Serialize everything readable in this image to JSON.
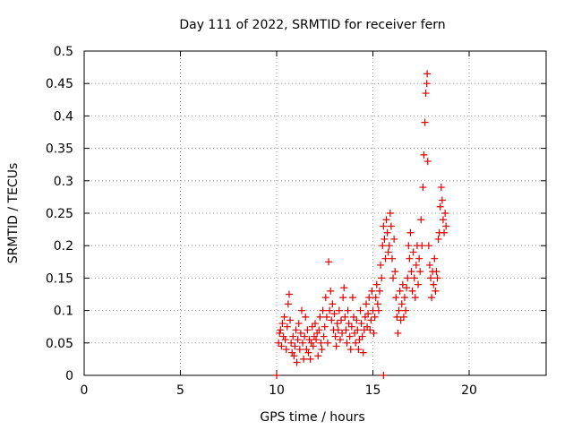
{
  "chart_data": {
    "type": "scatter",
    "title": "Day 111 of 2022, SRMTID for receiver fern",
    "xlabel": "GPS time / hours",
    "ylabel": "SRMTID / TECUs",
    "xlim": [
      0,
      24
    ],
    "ylim": [
      0,
      0.5
    ],
    "x_ticks": [
      0,
      5,
      10,
      15,
      20
    ],
    "y_ticks": [
      0,
      0.05,
      0.1,
      0.15,
      0.2,
      0.25,
      0.3,
      0.35,
      0.4,
      0.45,
      0.5
    ],
    "grid": true,
    "marker": "+",
    "color": "#e00000",
    "series": [
      {
        "name": "SRMTID",
        "points": [
          [
            10.0,
            0.0
          ],
          [
            15.55,
            0.0
          ],
          [
            10.1,
            0.05
          ],
          [
            10.15,
            0.065
          ],
          [
            10.2,
            0.07
          ],
          [
            10.25,
            0.045
          ],
          [
            10.3,
            0.08
          ],
          [
            10.35,
            0.06
          ],
          [
            10.4,
            0.09
          ],
          [
            10.45,
            0.055
          ],
          [
            10.5,
            0.04
          ],
          [
            10.55,
            0.075
          ],
          [
            10.6,
            0.11
          ],
          [
            10.65,
            0.125
          ],
          [
            10.7,
            0.085
          ],
          [
            10.75,
            0.05
          ],
          [
            10.8,
            0.035
          ],
          [
            10.85,
            0.06
          ],
          [
            10.9,
            0.03
          ],
          [
            10.95,
            0.045
          ],
          [
            11.0,
            0.07
          ],
          [
            11.05,
            0.02
          ],
          [
            11.1,
            0.055
          ],
          [
            11.15,
            0.08
          ],
          [
            11.2,
            0.04
          ],
          [
            11.25,
            0.065
          ],
          [
            11.3,
            0.1
          ],
          [
            11.35,
            0.05
          ],
          [
            11.4,
            0.025
          ],
          [
            11.45,
            0.06
          ],
          [
            11.5,
            0.09
          ],
          [
            11.55,
            0.04
          ],
          [
            11.6,
            0.07
          ],
          [
            11.65,
            0.035
          ],
          [
            11.7,
            0.055
          ],
          [
            11.75,
            0.025
          ],
          [
            11.8,
            0.05
          ],
          [
            11.85,
            0.075
          ],
          [
            11.9,
            0.045
          ],
          [
            11.95,
            0.06
          ],
          [
            12.0,
            0.08
          ],
          [
            12.05,
            0.055
          ],
          [
            12.1,
            0.065
          ],
          [
            12.15,
            0.03
          ],
          [
            12.2,
            0.07
          ],
          [
            12.25,
            0.09
          ],
          [
            12.3,
            0.05
          ],
          [
            12.35,
            0.04
          ],
          [
            12.4,
            0.1
          ],
          [
            12.45,
            0.06
          ],
          [
            12.5,
            0.075
          ],
          [
            12.55,
            0.12
          ],
          [
            12.6,
            0.09
          ],
          [
            12.65,
            0.05
          ],
          [
            12.7,
            0.175
          ],
          [
            12.75,
            0.1
          ],
          [
            12.8,
            0.13
          ],
          [
            12.85,
            0.085
          ],
          [
            12.9,
            0.11
          ],
          [
            12.95,
            0.07
          ],
          [
            13.0,
            0.095
          ],
          [
            13.05,
            0.06
          ],
          [
            13.1,
            0.045
          ],
          [
            13.15,
            0.08
          ],
          [
            13.2,
            0.07
          ],
          [
            13.25,
            0.1
          ],
          [
            13.3,
            0.055
          ],
          [
            13.35,
            0.085
          ],
          [
            13.4,
            0.065
          ],
          [
            13.45,
            0.12
          ],
          [
            13.5,
            0.135
          ],
          [
            13.55,
            0.09
          ],
          [
            13.6,
            0.07
          ],
          [
            13.65,
            0.05
          ],
          [
            13.7,
            0.1
          ],
          [
            13.75,
            0.08
          ],
          [
            13.8,
            0.06
          ],
          [
            13.85,
            0.04
          ],
          [
            13.9,
            0.075
          ],
          [
            13.95,
            0.12
          ],
          [
            14.0,
            0.09
          ],
          [
            14.05,
            0.065
          ],
          [
            14.1,
            0.05
          ],
          [
            14.15,
            0.085
          ],
          [
            14.2,
            0.07
          ],
          [
            14.25,
            0.04
          ],
          [
            14.3,
            0.055
          ],
          [
            14.35,
            0.1
          ],
          [
            14.4,
            0.08
          ],
          [
            14.45,
            0.06
          ],
          [
            14.5,
            0.035
          ],
          [
            14.55,
            0.07
          ],
          [
            14.6,
            0.09
          ],
          [
            14.65,
            0.11
          ],
          [
            14.7,
            0.075
          ],
          [
            14.75,
            0.095
          ],
          [
            14.8,
            0.12
          ],
          [
            14.85,
            0.07
          ],
          [
            14.9,
            0.085
          ],
          [
            14.95,
            0.13
          ],
          [
            15.0,
            0.1
          ],
          [
            15.05,
            0.065
          ],
          [
            15.1,
            0.09
          ],
          [
            15.15,
            0.12
          ],
          [
            15.2,
            0.14
          ],
          [
            15.25,
            0.11
          ],
          [
            15.3,
            0.1
          ],
          [
            15.35,
            0.13
          ],
          [
            15.4,
            0.17
          ],
          [
            15.45,
            0.15
          ],
          [
            15.5,
            0.2
          ],
          [
            15.55,
            0.23
          ],
          [
            15.6,
            0.21
          ],
          [
            15.65,
            0.18
          ],
          [
            15.7,
            0.24
          ],
          [
            15.75,
            0.22
          ],
          [
            15.8,
            0.19
          ],
          [
            15.85,
            0.2
          ],
          [
            15.9,
            0.25
          ],
          [
            15.95,
            0.23
          ],
          [
            16.0,
            0.18
          ],
          [
            16.05,
            0.15
          ],
          [
            16.1,
            0.21
          ],
          [
            16.15,
            0.16
          ],
          [
            16.2,
            0.12
          ],
          [
            16.25,
            0.09
          ],
          [
            16.3,
            0.065
          ],
          [
            16.35,
            0.1
          ],
          [
            16.4,
            0.13
          ],
          [
            16.45,
            0.085
          ],
          [
            16.5,
            0.11
          ],
          [
            16.55,
            0.14
          ],
          [
            16.6,
            0.09
          ],
          [
            16.65,
            0.12
          ],
          [
            16.7,
            0.1
          ],
          [
            16.75,
            0.135
          ],
          [
            16.8,
            0.15
          ],
          [
            16.85,
            0.2
          ],
          [
            16.9,
            0.18
          ],
          [
            16.95,
            0.22
          ],
          [
            17.0,
            0.16
          ],
          [
            17.05,
            0.13
          ],
          [
            17.1,
            0.19
          ],
          [
            17.15,
            0.15
          ],
          [
            17.2,
            0.12
          ],
          [
            17.25,
            0.17
          ],
          [
            17.3,
            0.2
          ],
          [
            17.35,
            0.14
          ],
          [
            17.4,
            0.18
          ],
          [
            17.45,
            0.16
          ],
          [
            17.5,
            0.24
          ],
          [
            17.55,
            0.2
          ],
          [
            17.6,
            0.29
          ],
          [
            17.65,
            0.34
          ],
          [
            17.7,
            0.39
          ],
          [
            17.75,
            0.435
          ],
          [
            17.8,
            0.45
          ],
          [
            17.82,
            0.465
          ],
          [
            17.85,
            0.33
          ],
          [
            17.9,
            0.2
          ],
          [
            17.95,
            0.17
          ],
          [
            18.0,
            0.15
          ],
          [
            18.05,
            0.12
          ],
          [
            18.1,
            0.16
          ],
          [
            18.15,
            0.14
          ],
          [
            18.2,
            0.18
          ],
          [
            18.25,
            0.13
          ],
          [
            18.3,
            0.16
          ],
          [
            18.35,
            0.15
          ],
          [
            18.4,
            0.21
          ],
          [
            18.45,
            0.22
          ],
          [
            18.5,
            0.26
          ],
          [
            18.55,
            0.29
          ],
          [
            18.6,
            0.27
          ],
          [
            18.65,
            0.24
          ],
          [
            18.7,
            0.22
          ],
          [
            18.75,
            0.25
          ],
          [
            18.8,
            0.23
          ]
        ]
      }
    ]
  }
}
